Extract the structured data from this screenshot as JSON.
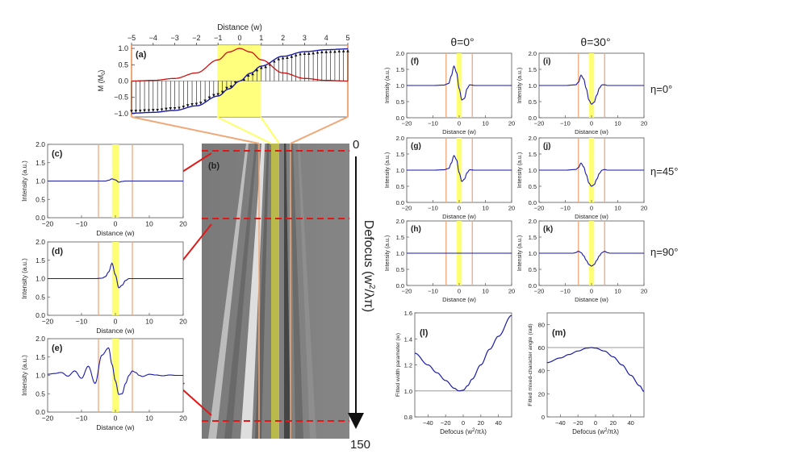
{
  "colors": {
    "curve": "#1a1aa8",
    "magnetization": "#cc1111",
    "yellow": "#ffff66",
    "salmon": "#f0a878",
    "reddash": "#e01818",
    "gray_axis": "#444444",
    "flat_line": "#999999"
  },
  "panel_a": {
    "label": "(a)",
    "xlabel": "Distance (w)",
    "ylabel": "M (M",
    "ylabel_sub": "0",
    "ylabel_end": ")",
    "xticks": [
      "−5",
      "−4",
      "−3",
      "−2",
      "−1",
      "0",
      "1",
      "2",
      "3",
      "4",
      "5"
    ],
    "yticks": [
      "1.0",
      "0.5",
      "0.0",
      "−0.5",
      "−1.0"
    ]
  },
  "panel_b": {
    "label": "(b)",
    "top_label": "0",
    "bottom_label": "150",
    "axis_label": "Defocus (w",
    "axis_label_sup": "2",
    "axis_label_end": "/λπ)"
  },
  "small_panels": {
    "ylabel": "Intensity (a.u.)",
    "xlabel": "Distance (w)",
    "xticks": [
      "−20",
      "−10",
      "0",
      "10",
      "20"
    ],
    "yticks": [
      "2.0",
      "1.5",
      "1.0",
      "0.5",
      "0.0"
    ]
  },
  "panels": [
    {
      "id": "c",
      "label": "(c)"
    },
    {
      "id": "d",
      "label": "(d)"
    },
    {
      "id": "e",
      "label": "(e)"
    },
    {
      "id": "f",
      "label": "(f)"
    },
    {
      "id": "g",
      "label": "(g)"
    },
    {
      "id": "h",
      "label": "(h)"
    },
    {
      "id": "i",
      "label": "(i)"
    },
    {
      "id": "j",
      "label": "(j)"
    },
    {
      "id": "k",
      "label": "(k)"
    }
  ],
  "column_headers": [
    "θ=0°",
    "θ=30°"
  ],
  "row_labels": [
    "η=0°",
    "η=45°",
    "η=90°"
  ],
  "panel_l": {
    "label": "(l)",
    "ylabel": "Fitted width parameter (w)",
    "xlabel": "Defocus (w",
    "xlabel_sup": "2",
    "xlabel_end": "/πλ)",
    "xticks": [
      "−40",
      "−20",
      "0",
      "20",
      "40"
    ],
    "yticks": [
      "1.6",
      "1.4",
      "1.2",
      "1.0",
      "0.8"
    ]
  },
  "panel_m": {
    "label": "(m)",
    "ylabel": "Fitted mixed-character angle (rad)",
    "xlabel": "Defocus (w",
    "xlabel_sup": "2",
    "xlabel_end": "/πλ)",
    "xticks": [
      "−40",
      "−20",
      "0",
      "20",
      "40"
    ],
    "yticks": [
      "80",
      "60",
      "40",
      "20",
      "0"
    ]
  },
  "chart_data": [
    {
      "panel": "a",
      "type": "line",
      "xlabel": "Distance (w)",
      "ylabel": "M (M0)",
      "xlim": [
        -5,
        5
      ],
      "ylim": [
        -1.1,
        1.1
      ],
      "series": [
        {
          "x": [
            -5,
            -4,
            -3,
            -2,
            -1,
            -0.5,
            0,
            0.5,
            1,
            2,
            3,
            4,
            5
          ],
          "y": [
            -0.986,
            -0.96,
            -0.9,
            -0.76,
            -0.46,
            -0.24,
            0,
            0.24,
            0.46,
            0.76,
            0.9,
            0.96,
            0.986
          ]
        },
        {
          "x": [
            -5,
            -4,
            -3,
            -2,
            -1,
            -0.5,
            0,
            0.5,
            1,
            2,
            3,
            4,
            5
          ],
          "y": [
            0.0,
            0.02,
            0.08,
            0.25,
            0.65,
            0.89,
            1.0,
            0.89,
            0.65,
            0.25,
            0.08,
            0.02,
            0.0
          ]
        }
      ],
      "highlight_x": [
        -1,
        1
      ]
    },
    {
      "panel": "c",
      "type": "line",
      "xlim": [
        -20,
        20
      ],
      "ylim": [
        0,
        2
      ],
      "x": [
        -20,
        -10,
        -5,
        -3,
        -2,
        -1,
        0,
        1,
        2,
        3,
        5,
        10,
        20
      ],
      "y": [
        1.0,
        1.0,
        1.0,
        1.0,
        1.02,
        1.06,
        1.03,
        0.97,
        0.99,
        1.0,
        1.0,
        1.0,
        1.0
      ]
    },
    {
      "panel": "d",
      "type": "line",
      "xlim": [
        -20,
        20
      ],
      "ylim": [
        0,
        2
      ],
      "x": [
        -20,
        -10,
        -6,
        -4,
        -3,
        -2,
        -1,
        0,
        1,
        2,
        3,
        4,
        6,
        10,
        20
      ],
      "y": [
        1.0,
        1.0,
        1.0,
        1.01,
        1.05,
        1.18,
        1.42,
        1.1,
        0.75,
        0.82,
        0.95,
        1.0,
        1.0,
        1.0,
        1.0
      ]
    },
    {
      "panel": "e",
      "type": "line",
      "xlim": [
        -20,
        20
      ],
      "ylim": [
        0,
        2
      ],
      "x": [
        -20,
        -18,
        -16,
        -14,
        -12,
        -10,
        -8,
        -6,
        -4,
        -2,
        -1,
        0,
        1,
        2,
        3,
        4,
        5,
        6,
        7,
        8,
        10,
        12,
        14,
        16,
        18,
        20
      ],
      "y": [
        1.03,
        1.05,
        1.08,
        0.98,
        1.12,
        0.92,
        1.25,
        0.78,
        1.55,
        1.75,
        1.3,
        0.85,
        0.48,
        0.5,
        0.78,
        1.0,
        1.12,
        1.08,
        1.0,
        0.97,
        1.03,
        1.01,
        0.99,
        1.01,
        1.0,
        1.0
      ]
    },
    {
      "panel": "f",
      "type": "line",
      "xlim": [
        -20,
        20
      ],
      "ylim": [
        0,
        2
      ],
      "x": [
        -20,
        -10,
        -6,
        -4,
        -3,
        -2,
        -1,
        0,
        1,
        2,
        3,
        4,
        6,
        10,
        20
      ],
      "y": [
        1.0,
        1.0,
        1.01,
        1.06,
        1.3,
        1.6,
        1.4,
        0.9,
        0.55,
        0.6,
        0.9,
        1.02,
        1.0,
        1.0,
        1.0
      ]
    },
    {
      "panel": "g",
      "type": "line",
      "xlim": [
        -20,
        20
      ],
      "ylim": [
        0,
        2
      ],
      "x": [
        -20,
        -10,
        -6,
        -4,
        -3,
        -2,
        -1,
        0,
        1,
        2,
        3,
        4,
        6,
        10,
        20
      ],
      "y": [
        1.0,
        1.0,
        1.01,
        1.05,
        1.22,
        1.45,
        1.32,
        0.92,
        0.65,
        0.72,
        0.92,
        1.01,
        1.0,
        1.0,
        1.0
      ]
    },
    {
      "panel": "h",
      "type": "line",
      "xlim": [
        -20,
        20
      ],
      "ylim": [
        0,
        2
      ],
      "x": [
        -20,
        20
      ],
      "y": [
        1.0,
        1.0
      ]
    },
    {
      "panel": "i",
      "type": "line",
      "xlim": [
        -20,
        20
      ],
      "ylim": [
        0,
        2
      ],
      "x": [
        -20,
        -10,
        -6,
        -5,
        -4,
        -3,
        -2,
        -1,
        0,
        1,
        2,
        3,
        4,
        5,
        6,
        10,
        20
      ],
      "y": [
        1.0,
        1.0,
        1.02,
        1.1,
        1.32,
        1.2,
        0.9,
        0.55,
        0.42,
        0.48,
        0.7,
        0.92,
        1.02,
        1.02,
        1.0,
        1.0,
        1.0
      ]
    },
    {
      "panel": "j",
      "type": "line",
      "xlim": [
        -20,
        20
      ],
      "ylim": [
        0,
        2
      ],
      "x": [
        -20,
        -10,
        -6,
        -5,
        -4,
        -3,
        -2,
        -1,
        0,
        1,
        2,
        3,
        4,
        5,
        6,
        10,
        20
      ],
      "y": [
        1.0,
        1.0,
        1.02,
        1.08,
        1.22,
        1.1,
        0.86,
        0.6,
        0.5,
        0.55,
        0.72,
        0.9,
        1.0,
        1.02,
        1.0,
        1.0,
        1.0
      ]
    },
    {
      "panel": "k",
      "type": "line",
      "xlim": [
        -20,
        20
      ],
      "ylim": [
        0,
        2
      ],
      "x": [
        -20,
        -10,
        -7,
        -6,
        -5,
        -4,
        -3,
        -2,
        -1,
        0,
        1,
        2,
        3,
        4,
        5,
        6,
        7,
        10,
        20
      ],
      "y": [
        1.0,
        1.0,
        1.0,
        1.02,
        1.06,
        1.02,
        0.92,
        0.78,
        0.65,
        0.6,
        0.65,
        0.78,
        0.92,
        1.02,
        1.06,
        1.02,
        1.0,
        1.0,
        1.0
      ]
    },
    {
      "panel": "l",
      "type": "line",
      "xlabel": "Defocus (w2/πλ)",
      "ylabel": "Fitted width parameter (w)",
      "xlim": [
        -55,
        55
      ],
      "ylim": [
        0.8,
        1.6
      ],
      "x": [
        -55,
        -40,
        -30,
        -20,
        -10,
        -5,
        0,
        5,
        10,
        20,
        30,
        40,
        55
      ],
      "y": [
        1.29,
        1.2,
        1.14,
        1.08,
        1.02,
        1.0,
        1.005,
        1.04,
        1.09,
        1.2,
        1.32,
        1.42,
        1.58
      ],
      "reference_y": 1.0
    },
    {
      "panel": "m",
      "type": "line",
      "xlabel": "Defocus (w2/πλ)",
      "ylabel": "Fitted mixed-character angle (rad)",
      "xlim": [
        -55,
        55
      ],
      "ylim": [
        0,
        90
      ],
      "x": [
        -55,
        -40,
        -30,
        -20,
        -10,
        -5,
        0,
        10,
        20,
        30,
        40,
        50,
        55
      ],
      "y": [
        47,
        51,
        54,
        57,
        59.5,
        60,
        59.5,
        57,
        52,
        45,
        36,
        27,
        22
      ],
      "reference_y": 60
    }
  ]
}
